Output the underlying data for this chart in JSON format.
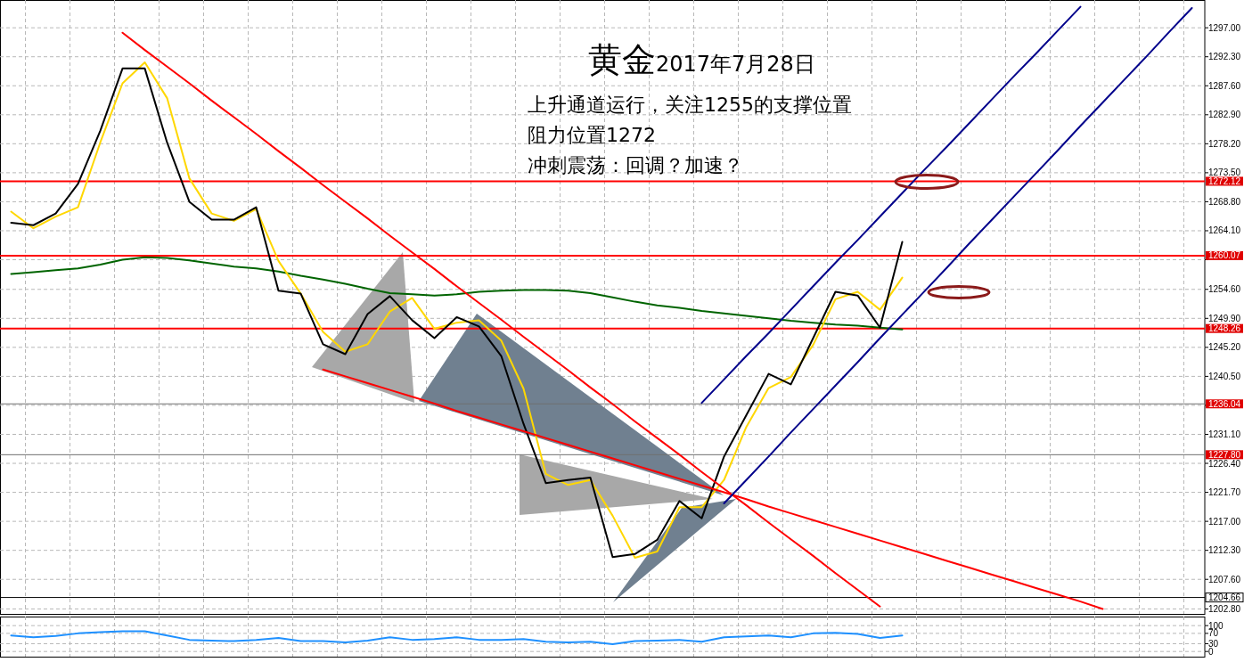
{
  "chart_data": [
    {
      "type": "line",
      "title": "黄金",
      "subtitle": "2017年7月28日",
      "annotations": [
        "上升通道运行，关注1255的支撑位置",
        "阻力位置1272",
        "冲刺震荡：回调？加速？"
      ],
      "categories": [
        null,
        null,
        null,
        null,
        null,
        null,
        null,
        null,
        null,
        null,
        null,
        null,
        null,
        null,
        null,
        null,
        null,
        null,
        null,
        null,
        null,
        null,
        null,
        null,
        null,
        null,
        null,
        null,
        null,
        null,
        null,
        null,
        null,
        null,
        null,
        null,
        null,
        null,
        null,
        null,
        null,
        null,
        null,
        null,
        null,
        null,
        null,
        null,
        null,
        null,
        null,
        null,
        null,
        null
      ],
      "series": [
        {
          "color": "#006400",
          "values": [
            1257.1,
            1257.4,
            1257.7,
            1258.0,
            1258.6,
            1259.4,
            1259.8,
            1259.7,
            1259.3,
            1258.8,
            1258.3,
            1258.0,
            1257.5,
            1256.8,
            1256.2,
            1255.5,
            1254.7,
            1254.0,
            1253.8,
            1253.6,
            1253.8,
            1254.2,
            1254.4,
            1254.5,
            1254.5,
            1254.4,
            1254.0,
            1253.3,
            1252.6,
            1252.0,
            1251.6,
            1251.1,
            1250.7,
            1250.3,
            1249.9,
            1249.5,
            1249.2,
            1248.9,
            1248.7,
            1248.4,
            1248.1,
            null,
            null,
            null,
            null,
            null,
            null,
            null,
            null,
            null,
            null,
            null,
            null,
            null
          ]
        },
        {
          "color": "#ffd700",
          "values": [
            1267.2,
            1264.5,
            1266.4,
            1267.9,
            1278.4,
            1288.0,
            1291.4,
            1285.6,
            1272.6,
            1266.9,
            1265.7,
            1267.6,
            1259.2,
            1253.9,
            1247.7,
            1244.5,
            1245.7,
            1251.0,
            1253.2,
            1248.2,
            1249.2,
            1249.6,
            1246.3,
            1238.5,
            1224.7,
            1222.9,
            1223.7,
            1217.9,
            1211.1,
            1212.1,
            1219.3,
            1219.3,
            1223.7,
            1232.3,
            1238.6,
            1240.4,
            1245.6,
            1253.0,
            1254.2,
            1251.3,
            1256.5,
            null,
            null,
            null,
            null,
            null,
            null,
            null,
            null,
            null,
            null,
            null,
            null,
            null
          ]
        },
        {
          "color": "#000000",
          "values": [
            1265.4,
            1265.0,
            1266.9,
            1271.7,
            1280.3,
            1290.4,
            1290.4,
            1278.4,
            1268.8,
            1265.9,
            1265.9,
            1267.9,
            1254.4,
            1253.9,
            1245.7,
            1244.1,
            1250.6,
            1253.5,
            1249.6,
            1246.7,
            1250.1,
            1248.6,
            1243.8,
            1232.8,
            1223.2,
            1223.7,
            1224.1,
            1211.2,
            1211.7,
            1214.0,
            1220.3,
            1217.5,
            1227.5,
            1234.2,
            1240.9,
            1239.2,
            1246.7,
            1254.2,
            1253.6,
            1248.4,
            1262.3,
            null,
            null,
            null,
            null,
            null,
            null,
            null,
            null,
            null,
            null,
            null,
            null,
            null
          ]
        },
        {
          "color": "#ff0000",
          "values": [
            null,
            null,
            null,
            null,
            null,
            1296.2,
            1293.4,
            1290.7,
            1288.0,
            1285.2,
            1282.5,
            1279.8,
            1277.0,
            1274.3,
            1271.5,
            1268.8,
            1266.1,
            1263.3,
            1260.6,
            1257.9,
            1255.1,
            1252.4,
            1249.7,
            1246.9,
            1244.2,
            1241.5,
            1238.7,
            1236.0,
            1233.2,
            1230.5,
            1227.8,
            1225.0,
            1222.3,
            1219.6,
            1216.8,
            1214.1,
            1211.4,
            1208.6,
            1205.9,
            1203.2,
            null,
            null,
            null,
            null,
            null,
            null,
            null,
            null,
            null,
            null,
            null,
            null,
            null,
            null
          ]
        },
        {
          "color": "#ff0000",
          "values": [
            null,
            null,
            null,
            null,
            null,
            null,
            null,
            null,
            null,
            null,
            null,
            null,
            null,
            null,
            1241.6,
            1240.5,
            1239.4,
            1238.3,
            1237.2,
            1236.1,
            1234.9,
            1233.8,
            1232.7,
            1231.6,
            1230.5,
            1229.4,
            1228.3,
            1227.2,
            1226.1,
            1225.0,
            1223.9,
            1222.8,
            1221.7,
            1220.6,
            1219.4,
            1218.3,
            1217.2,
            1216.1,
            1215.0,
            1213.9,
            1212.8,
            1211.7,
            1210.6,
            1209.5,
            1208.4,
            1207.3,
            1206.2,
            1205.1,
            1204.0,
            1202.8,
            null,
            null,
            null,
            null
          ]
        },
        {
          "color": "#00008b",
          "values": [
            null,
            null,
            null,
            null,
            null,
            null,
            null,
            null,
            null,
            null,
            null,
            null,
            null,
            null,
            null,
            null,
            null,
            null,
            null,
            null,
            null,
            null,
            null,
            null,
            null,
            null,
            null,
            null,
            null,
            null,
            null,
            1236.2,
            1240.0,
            1243.8,
            1247.5,
            1251.3,
            1255.1,
            1258.9,
            1262.6,
            1266.4,
            1270.2,
            1274.0,
            1277.7,
            1281.5,
            1285.3,
            1289.1,
            1292.8,
            1296.6,
            1300.4,
            null,
            null,
            null,
            null,
            null
          ]
        },
        {
          "color": "#00008b",
          "values": [
            null,
            null,
            null,
            null,
            null,
            null,
            null,
            null,
            null,
            null,
            null,
            null,
            null,
            null,
            null,
            null,
            null,
            null,
            null,
            null,
            null,
            null,
            null,
            null,
            null,
            null,
            null,
            null,
            null,
            null,
            null,
            null,
            1219.9,
            1223.7,
            1227.5,
            1231.4,
            1235.2,
            1239.0,
            1242.8,
            1246.7,
            1250.5,
            1254.3,
            1258.1,
            1262.0,
            1265.8,
            1269.6,
            1273.4,
            1277.2,
            1281.1,
            1284.9,
            1288.7,
            1292.5,
            1296.4,
            1300.2
          ]
        }
      ],
      "ylim": [
        1202,
        1301.5
      ],
      "yticks": [
        {
          "value": 1297.0,
          "label": "1297.00"
        },
        {
          "value": 1292.3,
          "label": "1292.30"
        },
        {
          "value": 1287.6,
          "label": "1287.60"
        },
        {
          "value": 1282.9,
          "label": "1282.90"
        },
        {
          "value": 1278.2,
          "label": "1278.20"
        },
        {
          "value": 1273.5,
          "label": "1273.50"
        },
        {
          "value": 1268.8,
          "label": "1268.80"
        },
        {
          "value": 1264.1,
          "label": "1264.10"
        },
        {
          "value": 1259.4,
          "label": null
        },
        {
          "value": 1254.6,
          "label": "1254.60"
        },
        {
          "value": 1249.9,
          "label": "1249.90"
        },
        {
          "value": 1245.2,
          "label": "1245.20"
        },
        {
          "value": 1240.5,
          "label": "1240.50"
        },
        {
          "value": 1235.8,
          "label": null
        },
        {
          "value": 1231.1,
          "label": "1231.10"
        },
        {
          "value": 1226.4,
          "label": "1226.40"
        },
        {
          "value": 1221.7,
          "label": "1221.70"
        },
        {
          "value": 1217.0,
          "label": "1217.00"
        },
        {
          "value": 1212.3,
          "label": "1212.30"
        },
        {
          "value": 1207.6,
          "label": "1207.60"
        },
        {
          "value": 1202.8,
          "label": "1202.80"
        }
      ],
      "ref_lines": [
        {
          "axis": "y",
          "value": 1272.12,
          "label": "1272.12",
          "color": "#ff0000"
        },
        {
          "axis": "y",
          "value": 1260.07,
          "label": "1260.07",
          "color": "#ff0000"
        },
        {
          "axis": "y",
          "value": 1248.26,
          "label": "1248.26",
          "color": "#ff0000"
        },
        {
          "axis": "y",
          "value": 1236.04,
          "label": "1236.04",
          "color": "#707070"
        },
        {
          "axis": "y",
          "value": 1227.8,
          "label": "1227.80",
          "color": "#707070"
        },
        {
          "axis": "y",
          "value": 1204.66,
          "label": "1204.66",
          "color": "#000000"
        }
      ],
      "grid": true,
      "tick_labels": "y"
    },
    {
      "type": "line",
      "categories": [
        null,
        null,
        null,
        null,
        null,
        null,
        null,
        null,
        null,
        null,
        null,
        null,
        null,
        null,
        null,
        null,
        null,
        null,
        null,
        null,
        null,
        null,
        null,
        null,
        null,
        null,
        null,
        null,
        null,
        null,
        null,
        null,
        null,
        null,
        null,
        null,
        null,
        null,
        null,
        null,
        null,
        null,
        null,
        null,
        null,
        null,
        null,
        null,
        null,
        null,
        null,
        null,
        null,
        null
      ],
      "series": [
        {
          "color": "#1e90ff",
          "values": [
            62,
            55,
            60,
            70,
            75,
            78,
            78,
            62,
            45,
            42,
            40,
            45,
            52,
            40,
            40,
            35,
            42,
            55,
            45,
            48,
            55,
            45,
            45,
            48,
            38,
            35,
            38,
            28,
            40,
            42,
            45,
            38,
            55,
            58,
            62,
            55,
            70,
            72,
            68,
            52,
            62,
            null,
            null,
            null,
            null,
            null,
            null,
            null,
            null,
            null,
            null,
            null,
            null,
            null
          ]
        }
      ],
      "ylim": [
        -20,
        135
      ],
      "yticks": [
        0,
        30,
        70,
        100
      ],
      "grid": true,
      "tick_labels": "y"
    }
  ]
}
